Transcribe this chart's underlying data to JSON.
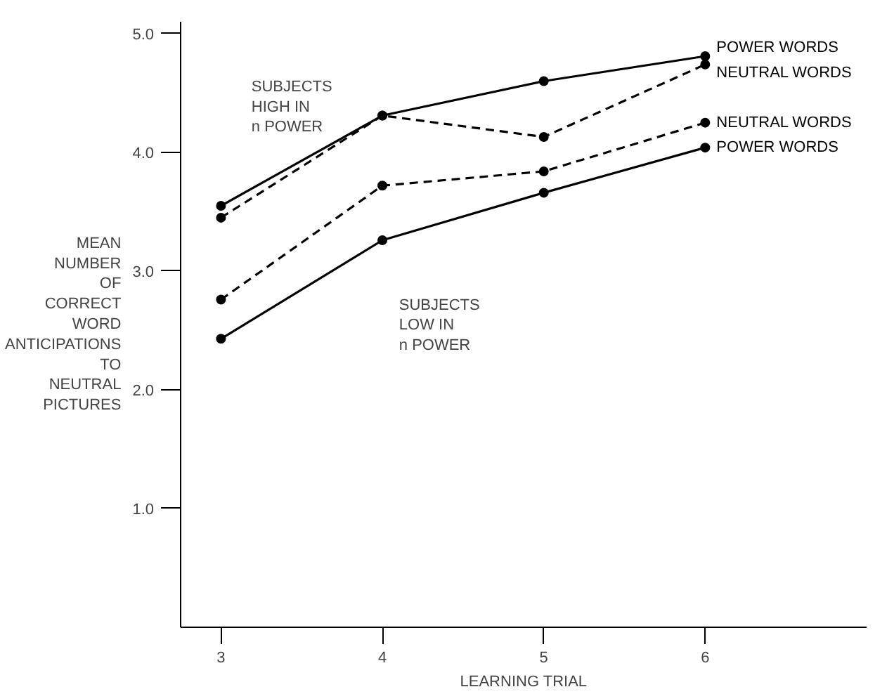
{
  "chart_data": {
    "type": "line",
    "xlabel": "LEARNING TRIAL",
    "ylabel": "MEAN\nNUMBER\nOF\nCORRECT\nWORD\nANTICIPATIONS\nTO\nNEUTRAL\nPICTURES",
    "x": [
      3,
      4,
      5,
      6
    ],
    "xlim": [
      2.75,
      7.0
    ],
    "xticks": [
      3,
      4,
      5,
      6
    ],
    "ylim": [
      0,
      5.1
    ],
    "yticks": [
      {
        "value": 1,
        "label": "1.0"
      },
      {
        "value": 2,
        "label": "2.0"
      },
      {
        "value": 3,
        "label": "3.0"
      },
      {
        "value": 4,
        "label": "4.0"
      },
      {
        "value": 5,
        "label": "5.0"
      }
    ],
    "grid": false,
    "marker": "circle",
    "series": [
      {
        "name": "POWER WORDS",
        "color": "#000000",
        "line_style": "solid",
        "values": [
          3.55,
          4.31,
          4.6,
          4.81
        ]
      },
      {
        "name": "NEUTRAL WORDS",
        "color": "#000000",
        "line_style": "dashed",
        "values": [
          3.45,
          4.31,
          4.13,
          4.74
        ]
      },
      {
        "name": "NEUTRAL WORDS",
        "color": "#000000",
        "line_style": "dashed",
        "values": [
          2.76,
          3.72,
          3.84,
          4.25
        ]
      },
      {
        "name": "POWER WORDS",
        "color": "#000000",
        "line_style": "solid",
        "values": [
          2.43,
          3.26,
          3.66,
          4.04
        ]
      }
    ],
    "annotations": [
      "SUBJECTS\nHIGH IN\nn POWER",
      "SUBJECTS\nLOW IN\nn POWER"
    ]
  }
}
